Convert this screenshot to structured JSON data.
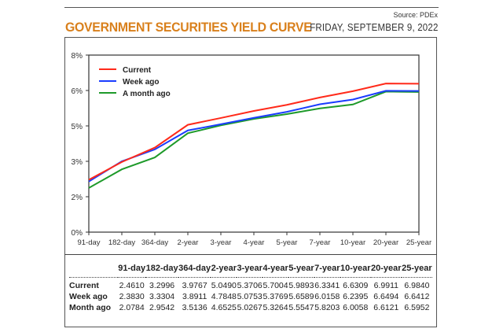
{
  "header": {
    "source": "Source: PDEx",
    "title": "GOVERNMENT SECURITIES YIELD CURVE",
    "date": "FRIDAY, SEPTEMBER 9, 2022"
  },
  "colors": {
    "title": "#d9801c",
    "current": "#ff2a1a",
    "week_ago": "#1a3cff",
    "month_ago": "#1e9a2a"
  },
  "chart_data": {
    "type": "line",
    "title": "Government Securities Yield Curve",
    "xlabel": "",
    "ylabel": "",
    "categories": [
      "91-day",
      "182-day",
      "364-day",
      "2-year",
      "3-year",
      "4-year",
      "5-year",
      "7-year",
      "10-year",
      "20-year",
      "25-year"
    ],
    "y_tick_labels": [
      "0%",
      "2%",
      "3%",
      "5%",
      "6%",
      "8%"
    ],
    "ylim": [
      0,
      8.33
    ],
    "grid": false,
    "legend_position": "top-left",
    "series": [
      {
        "name": "Current",
        "color": "#ff2a1a",
        "values": [
          2.461,
          3.2996,
          3.9767,
          5.049,
          5.3706,
          5.7004,
          5.9893,
          6.3341,
          6.6309,
          6.9911,
          6.984
        ]
      },
      {
        "name": "Week ago",
        "color": "#1a3cff",
        "values": [
          2.383,
          3.3304,
          3.8911,
          4.7848,
          5.0753,
          5.3769,
          5.6589,
          6.0158,
          6.2395,
          6.6494,
          6.6412
        ]
      },
      {
        "name": "A month ago",
        "color": "#1e9a2a",
        "values": [
          2.0784,
          2.9542,
          3.5136,
          4.6525,
          5.0267,
          5.3264,
          5.5547,
          5.8203,
          6.0058,
          6.6121,
          6.5952
        ]
      }
    ]
  },
  "table": {
    "columns": [
      "",
      "91-day",
      "182-day",
      "364-day",
      "2-year",
      "3-year",
      "4-year",
      "5-year",
      "7-year",
      "10-year",
      "20-year",
      "25-year"
    ],
    "rows": [
      {
        "label": "Current",
        "values": [
          "2.4610",
          "3.2996",
          "3.9767",
          "5.0490",
          "5.3706",
          "5.7004",
          "5.9893",
          "6.3341",
          "6.6309",
          "6.9911",
          "6.9840"
        ]
      },
      {
        "label": "Week ago",
        "values": [
          "2.3830",
          "3.3304",
          "3.8911",
          "4.7848",
          "5.0753",
          "5.3769",
          "5.6589",
          "6.0158",
          "6.2395",
          "6.6494",
          "6.6412"
        ]
      },
      {
        "label": "Month ago",
        "values": [
          "2.0784",
          "2.9542",
          "3.5136",
          "4.6525",
          "5.0267",
          "5.3264",
          "5.5547",
          "5.8203",
          "6.0058",
          "6.6121",
          "6.5952"
        ]
      }
    ]
  }
}
